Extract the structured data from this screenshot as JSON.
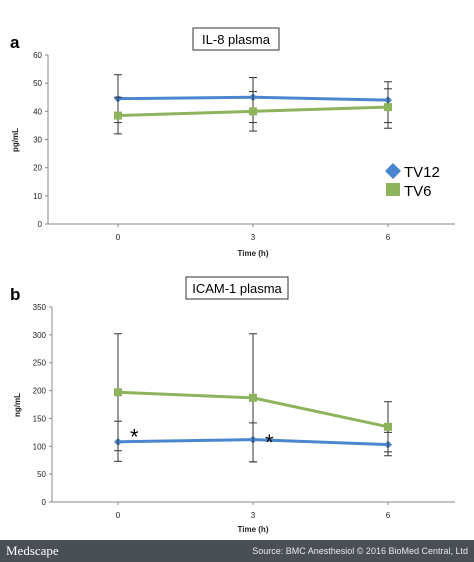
{
  "footer": {
    "logo": "Medscape",
    "source": "Source: BMC Anesthesiol © 2016 BioMed Central, Ltd"
  },
  "chart_data": [
    {
      "type": "line",
      "panel_label": "a",
      "title": "IL-8 plasma",
      "xlabel": "Time (h)",
      "ylabel": "pg/mL",
      "x": [
        "0",
        "3",
        "6"
      ],
      "ylim": [
        0,
        60
      ],
      "yticks": [
        0,
        10,
        20,
        30,
        40,
        50,
        60
      ],
      "grid": false,
      "legend_position": "right",
      "series": [
        {
          "name": "TV12",
          "color": "#4a86cf",
          "marker": "diamond",
          "values": [
            44.5,
            45,
            44
          ],
          "err_low": [
            36,
            36,
            36
          ],
          "err_high": [
            53,
            52,
            50.5
          ]
        },
        {
          "name": "TV6",
          "color": "#8db35c",
          "marker": "square",
          "values": [
            38.5,
            40,
            41.5
          ],
          "err_low": [
            32,
            33,
            34
          ],
          "err_high": [
            45,
            47,
            48
          ]
        }
      ],
      "annotations": []
    },
    {
      "type": "line",
      "panel_label": "b",
      "title": "ICAM-1 plasma",
      "xlabel": "Time (h)",
      "ylabel": "ng/mL",
      "x": [
        "0",
        "3",
        "6"
      ],
      "ylim": [
        0,
        350
      ],
      "yticks": [
        0,
        50,
        100,
        150,
        200,
        250,
        300,
        350
      ],
      "grid": false,
      "series": [
        {
          "color": "#4a86cf",
          "marker": "diamond",
          "values": [
            108,
            112,
            103
          ],
          "err_low": [
            73,
            72,
            83
          ],
          "err_high": [
            145,
            142,
            125
          ]
        },
        {
          "color": "#8db35c",
          "marker": "square",
          "values": [
            197,
            187,
            135
          ],
          "err_low": [
            92,
            72,
            90
          ],
          "err_high": [
            302,
            302,
            180
          ]
        }
      ],
      "annotations": [
        {
          "text": "*",
          "x_index": 0,
          "y": 125
        },
        {
          "text": "*",
          "x_index": 1,
          "y": 115
        }
      ]
    }
  ]
}
